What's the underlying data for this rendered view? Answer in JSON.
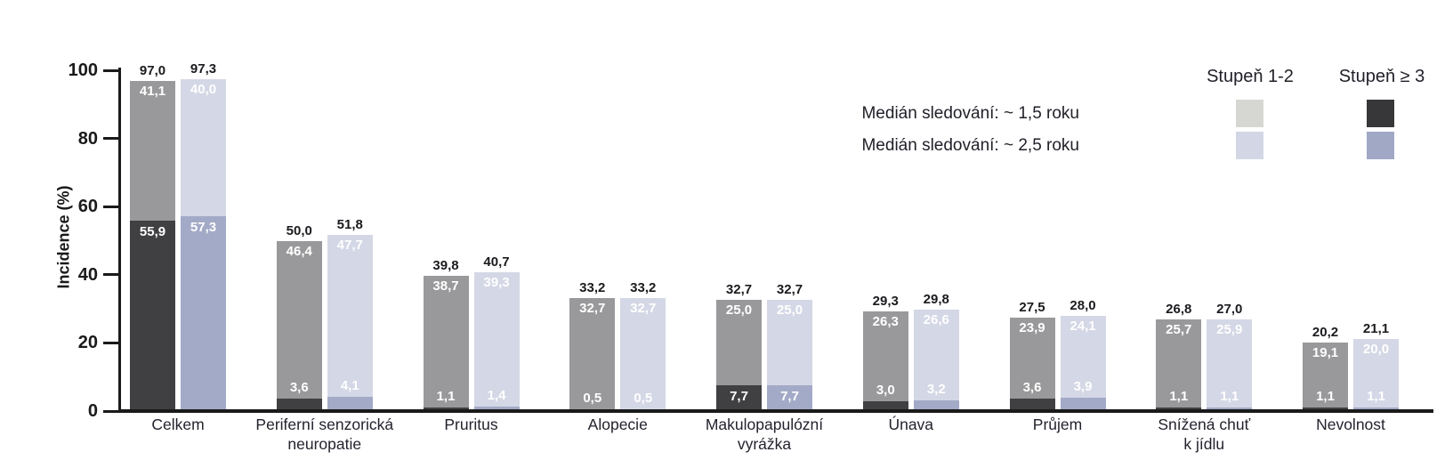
{
  "chart_data": {
    "type": "bar",
    "stacked": true,
    "title": "",
    "xlabel": "",
    "ylabel": "Incidence (%)",
    "ylim": [
      0,
      100
    ],
    "yticks": [
      "0",
      "20",
      "40",
      "60",
      "80",
      "100"
    ],
    "grid": false,
    "legend_position": "top-right",
    "legend": {
      "column_headers": [
        "Stupeň 1-2",
        "Stupeň ≥ 3"
      ],
      "rows": [
        {
          "label": "Medián sledování: ~ 1,5 roku",
          "swatch_grade12": "#d6d7d2",
          "swatch_grade3": "#37373a"
        },
        {
          "label": "Medián sledování: ~ 2,5 roku",
          "swatch_grade12": "#d3d7e5",
          "swatch_grade3": "#a1a8c6"
        }
      ]
    },
    "series_names": [
      "Medián sledování: ~ 1,5 roku",
      "Medián sledování: ~ 2,5 roku"
    ],
    "bar_colors": [
      {
        "grade3": "#404043",
        "grade12": "#99999b"
      },
      {
        "grade3": "#a3aac7",
        "grade12": "#d4d7e5"
      }
    ],
    "value_label_color_on_bar": "#ffffff",
    "groups": [
      {
        "category": "Celkem",
        "bars": [
          {
            "total": "97,0",
            "grade12": "41,1",
            "grade3": "55,9"
          },
          {
            "total": "97,3",
            "grade12": "40,0",
            "grade3": "57,3"
          }
        ]
      },
      {
        "category": "Periferní senzorická\nneuropatie",
        "bars": [
          {
            "total": "50,0",
            "grade12": "46,4",
            "grade3": "3,6"
          },
          {
            "total": "51,8",
            "grade12": "47,7",
            "grade3": "4,1"
          }
        ]
      },
      {
        "category": "Pruritus",
        "bars": [
          {
            "total": "39,8",
            "grade12": "38,7",
            "grade3": "1,1"
          },
          {
            "total": "40,7",
            "grade12": "39,3",
            "grade3": "1,4"
          }
        ]
      },
      {
        "category": "Alopecie",
        "bars": [
          {
            "total": "33,2",
            "grade12": "32,7",
            "grade3": "0,5"
          },
          {
            "total": "33,2",
            "grade12": "32,7",
            "grade3": "0,5"
          }
        ]
      },
      {
        "category": "Makulopapulózní\nvyrážka",
        "bars": [
          {
            "total": "32,7",
            "grade12": "25,0",
            "grade3": "7,7"
          },
          {
            "total": "32,7",
            "grade12": "25,0",
            "grade3": "7,7"
          }
        ]
      },
      {
        "category": "Únava",
        "bars": [
          {
            "total": "29,3",
            "grade12": "26,3",
            "grade3": "3,0"
          },
          {
            "total": "29,8",
            "grade12": "26,6",
            "grade3": "3,2"
          }
        ]
      },
      {
        "category": "Průjem",
        "bars": [
          {
            "total": "27,5",
            "grade12": "23,9",
            "grade3": "3,6"
          },
          {
            "total": "28,0",
            "grade12": "24,1",
            "grade3": "3,9"
          }
        ]
      },
      {
        "category": "Snížená chuť\nk jídlu",
        "bars": [
          {
            "total": "26,8",
            "grade12": "25,7",
            "grade3": "1,1"
          },
          {
            "total": "27,0",
            "grade12": "25,9",
            "grade3": "1,1"
          }
        ]
      },
      {
        "category": "Nevolnost",
        "bars": [
          {
            "total": "20,2",
            "grade12": "19,1",
            "grade3": "1,1"
          },
          {
            "total": "21,1",
            "grade12": "20,0",
            "grade3": "1,1"
          }
        ]
      }
    ]
  }
}
